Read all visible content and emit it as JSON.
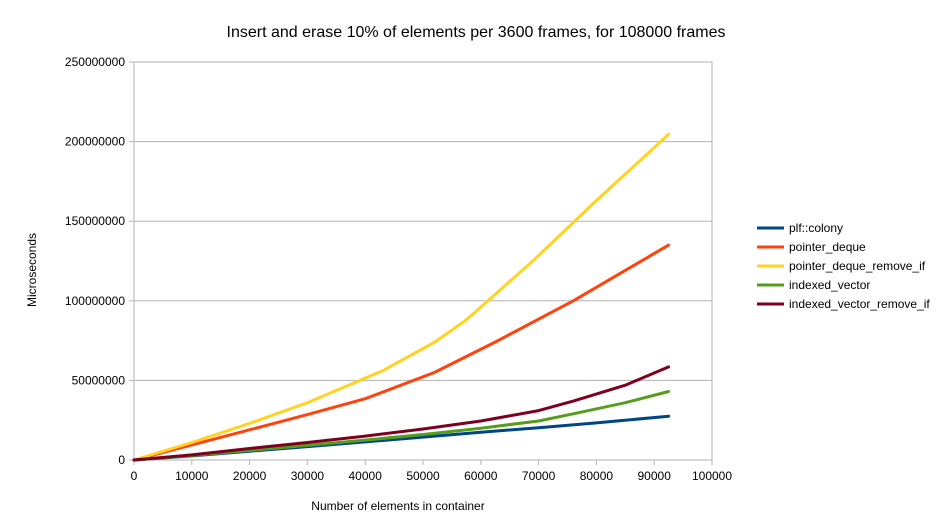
{
  "chart_data": {
    "type": "line",
    "title": "Insert and erase 10% of elements per 3600 frames, for 108000 frames",
    "xlabel": "Number of elements in container",
    "ylabel": "Microseconds",
    "xlim": [
      0,
      100000
    ],
    "ylim": [
      0,
      250000000
    ],
    "x_ticks": [
      0,
      10000,
      20000,
      30000,
      40000,
      50000,
      60000,
      70000,
      80000,
      90000,
      100000
    ],
    "y_ticks": [
      0,
      50000000,
      100000000,
      150000000,
      200000000,
      250000000
    ],
    "grid": true,
    "legend_position": "right",
    "series": [
      {
        "name": "plf::colony",
        "color": "#004586",
        "points": [
          [
            0,
            0
          ],
          [
            10000,
            2600000
          ],
          [
            20000,
            5500000
          ],
          [
            30000,
            8400000
          ],
          [
            40000,
            11400000
          ],
          [
            50000,
            14400000
          ],
          [
            60000,
            17400000
          ],
          [
            70000,
            20300000
          ],
          [
            80000,
            23300000
          ],
          [
            92500,
            27500000
          ]
        ]
      },
      {
        "name": "pointer_deque",
        "color": "#ff420e",
        "points": [
          [
            0,
            0
          ],
          [
            10000,
            9500000
          ],
          [
            20000,
            19000000
          ],
          [
            30000,
            28500000
          ],
          [
            40000,
            38500000
          ],
          [
            52000,
            55000000
          ],
          [
            63000,
            75000000
          ],
          [
            76000,
            100000000
          ],
          [
            92500,
            135000000
          ]
        ]
      },
      {
        "name": "pointer_deque_remove_if",
        "color": "#ffd320",
        "points": [
          [
            0,
            0
          ],
          [
            10000,
            11000000
          ],
          [
            20000,
            23000000
          ],
          [
            30000,
            36000000
          ],
          [
            43000,
            56000000
          ],
          [
            52000,
            74000000
          ],
          [
            57500,
            88000000
          ],
          [
            69000,
            125000000
          ],
          [
            80000,
            163000000
          ],
          [
            92500,
            204500000
          ]
        ]
      },
      {
        "name": "indexed_vector",
        "color": "#579d1c",
        "points": [
          [
            0,
            0
          ],
          [
            10000,
            2800000
          ],
          [
            20000,
            6000000
          ],
          [
            30000,
            9200000
          ],
          [
            40000,
            12500000
          ],
          [
            50000,
            16000000
          ],
          [
            60000,
            20000000
          ],
          [
            70000,
            24500000
          ],
          [
            76000,
            29000000
          ],
          [
            85000,
            36000000
          ],
          [
            92500,
            43000000
          ]
        ]
      },
      {
        "name": "indexed_vector_remove_if",
        "color": "#7e0021",
        "points": [
          [
            0,
            0
          ],
          [
            10000,
            3200000
          ],
          [
            20000,
            7200000
          ],
          [
            30000,
            11000000
          ],
          [
            40000,
            15000000
          ],
          [
            50000,
            19500000
          ],
          [
            60000,
            24500000
          ],
          [
            70000,
            31000000
          ],
          [
            76000,
            37000000
          ],
          [
            85000,
            47000000
          ],
          [
            92500,
            58500000
          ]
        ]
      }
    ]
  }
}
